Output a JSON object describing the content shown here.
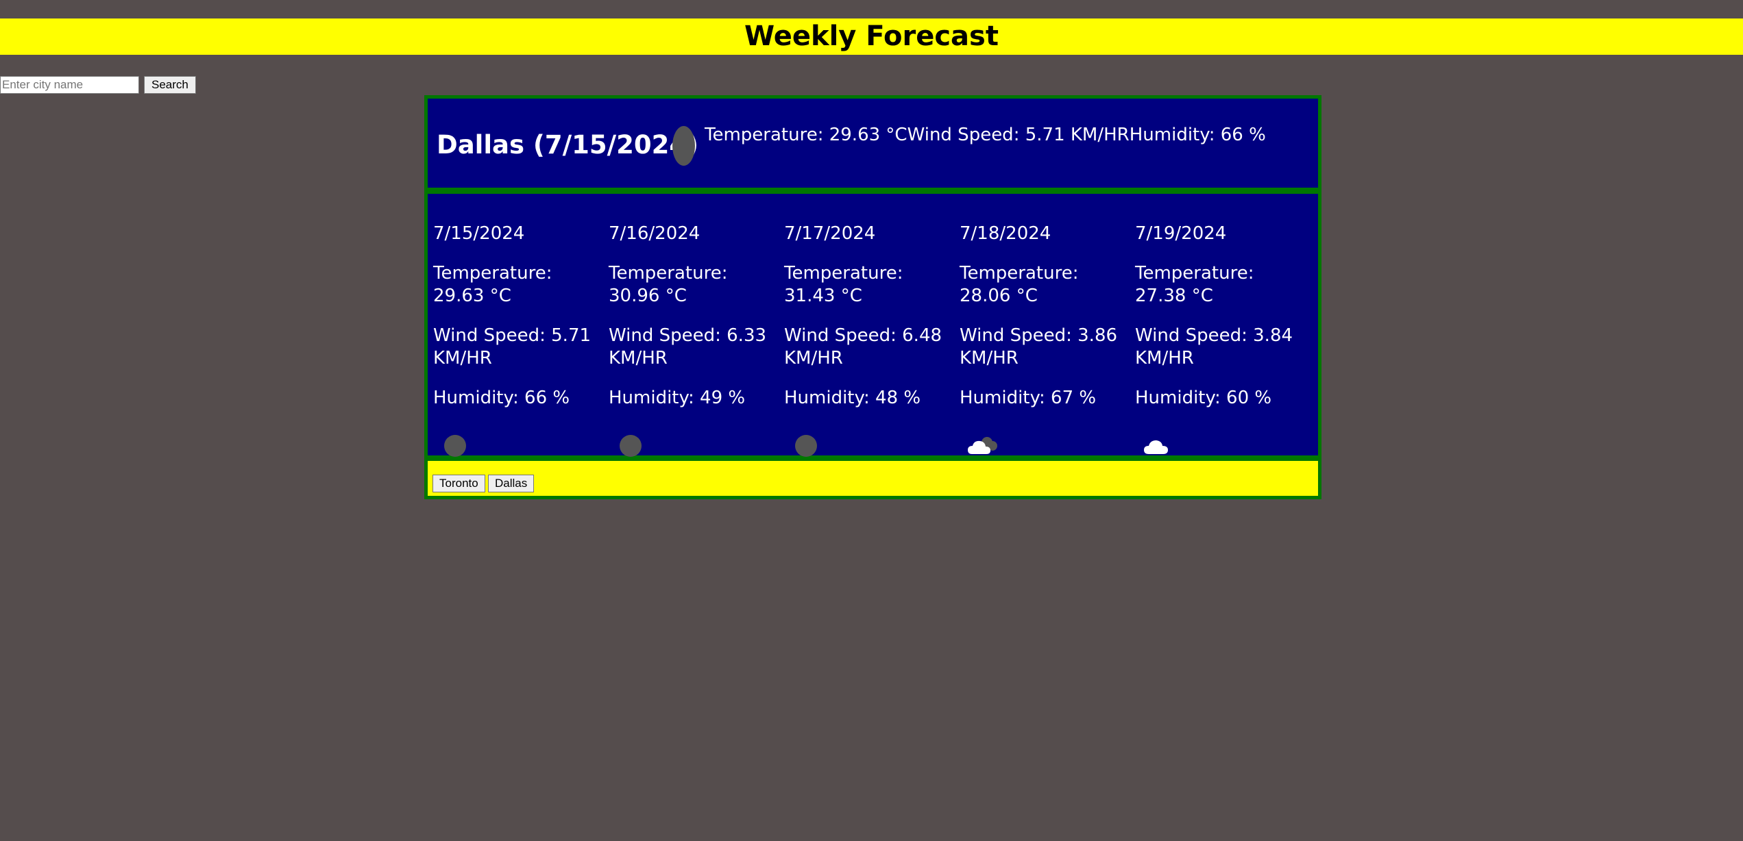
{
  "header": {
    "title": "Weekly Forecast"
  },
  "search": {
    "placeholder": "Enter city name",
    "value": "",
    "button_label": "Search"
  },
  "current": {
    "heading": "Dallas (7/15/2024)",
    "temperature": "Temperature: 29.63 °C",
    "wind": "Wind Speed: 5.71 KM/HR",
    "humidity": "Humidity: 66 %",
    "icon": "clear-night-icon"
  },
  "forecast": [
    {
      "date": "7/15/2024",
      "temperature": "Temperature: 29.63 °C",
      "wind": "Wind Speed: 5.71 KM/HR",
      "humidity": "Humidity: 66 %",
      "icon": "clear-night-icon"
    },
    {
      "date": "7/16/2024",
      "temperature": "Temperature: 30.96 °C",
      "wind": "Wind Speed: 6.33 KM/HR",
      "humidity": "Humidity: 49 %",
      "icon": "clear-night-icon"
    },
    {
      "date": "7/17/2024",
      "temperature": "Temperature: 31.43 °C",
      "wind": "Wind Speed: 6.48 KM/HR",
      "humidity": "Humidity: 48 %",
      "icon": "clear-night-icon"
    },
    {
      "date": "7/18/2024",
      "temperature": "Temperature: 28.06 °C",
      "wind": "Wind Speed: 3.86 KM/HR",
      "humidity": "Humidity: 67 %",
      "icon": "partly-cloudy-night-icon"
    },
    {
      "date": "7/19/2024",
      "temperature": "Temperature: 27.38 °C",
      "wind": "Wind Speed: 3.84 KM/HR",
      "humidity": "Humidity: 60 %",
      "icon": "cloud-icon"
    }
  ],
  "history": {
    "buttons": [
      "Toronto",
      "Dallas"
    ]
  },
  "colors": {
    "page_background": "#554d4d",
    "header_band": "#ffff00",
    "panel_background": "#000080",
    "panel_border": "#007700"
  }
}
